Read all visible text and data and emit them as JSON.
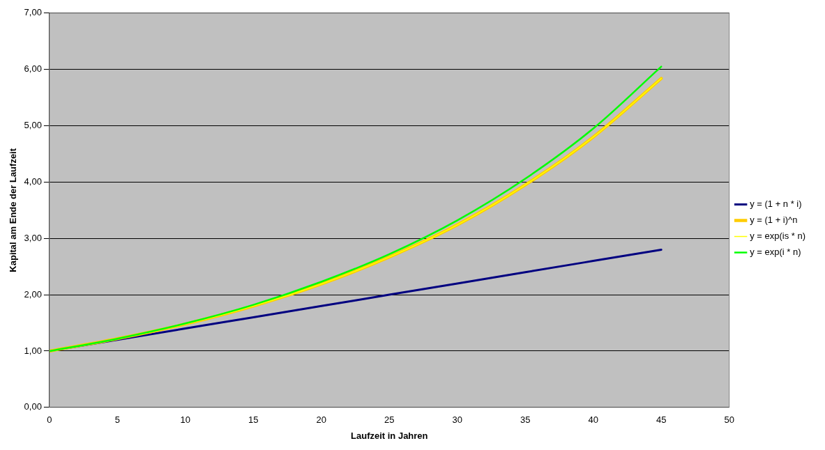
{
  "chart_data": {
    "type": "line",
    "xlabel": "Laufzeit in Jahren",
    "ylabel": "Kapital am Ende der Laufzeit",
    "x": [
      0,
      5,
      10,
      15,
      20,
      25,
      30,
      35,
      40,
      45
    ],
    "series": [
      {
        "name": "y = (1 + n * i)",
        "color": "#000080",
        "values": [
          1.0,
          1.2,
          1.4,
          1.6,
          1.8,
          2.0,
          2.2,
          2.4,
          2.6,
          2.8
        ]
      },
      {
        "name": "y = (1 + i)^n",
        "color": "#ffcc00",
        "values": [
          1.0,
          1.22,
          1.48,
          1.8,
          2.19,
          2.67,
          3.24,
          3.95,
          4.8,
          5.84
        ]
      },
      {
        "name": "y = exp(is * n)",
        "color": "#ffff00",
        "values": [
          1.0,
          1.22,
          1.48,
          1.8,
          2.19,
          2.67,
          3.24,
          3.95,
          4.8,
          5.84
        ]
      },
      {
        "name": "y = exp(i * n)",
        "color": "#00ff00",
        "values": [
          1.0,
          1.22,
          1.49,
          1.82,
          2.23,
          2.72,
          3.32,
          4.06,
          4.95,
          6.05
        ]
      }
    ],
    "xlim": [
      0,
      50
    ],
    "xticks": [
      0,
      5,
      10,
      15,
      20,
      25,
      30,
      35,
      40,
      45,
      50
    ],
    "ylim": [
      0,
      7
    ],
    "yticks": [
      {
        "value": 0,
        "label": "0,00"
      },
      {
        "value": 1,
        "label": "1,00"
      },
      {
        "value": 2,
        "label": "2,00"
      },
      {
        "value": 3,
        "label": "3,00"
      },
      {
        "value": 4,
        "label": "4,00"
      },
      {
        "value": 5,
        "label": "5,00"
      },
      {
        "value": 6,
        "label": "6,00"
      },
      {
        "value": 7,
        "label": "7,00"
      }
    ],
    "grid": "y",
    "legend": "right",
    "marker": "none",
    "line_style": "solid"
  }
}
